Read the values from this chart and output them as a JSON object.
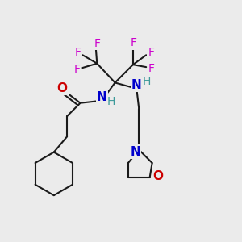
{
  "bg_color": "#ebebeb",
  "bond_color": "#1a1a1a",
  "bond_width": 1.5,
  "atom_colors": {
    "O": "#cc0000",
    "N": "#0000cc",
    "F": "#cc00cc",
    "H": "#3d9a9a",
    "C": "#1a1a1a"
  },
  "figsize": [
    3.0,
    3.0
  ],
  "dpi": 100
}
